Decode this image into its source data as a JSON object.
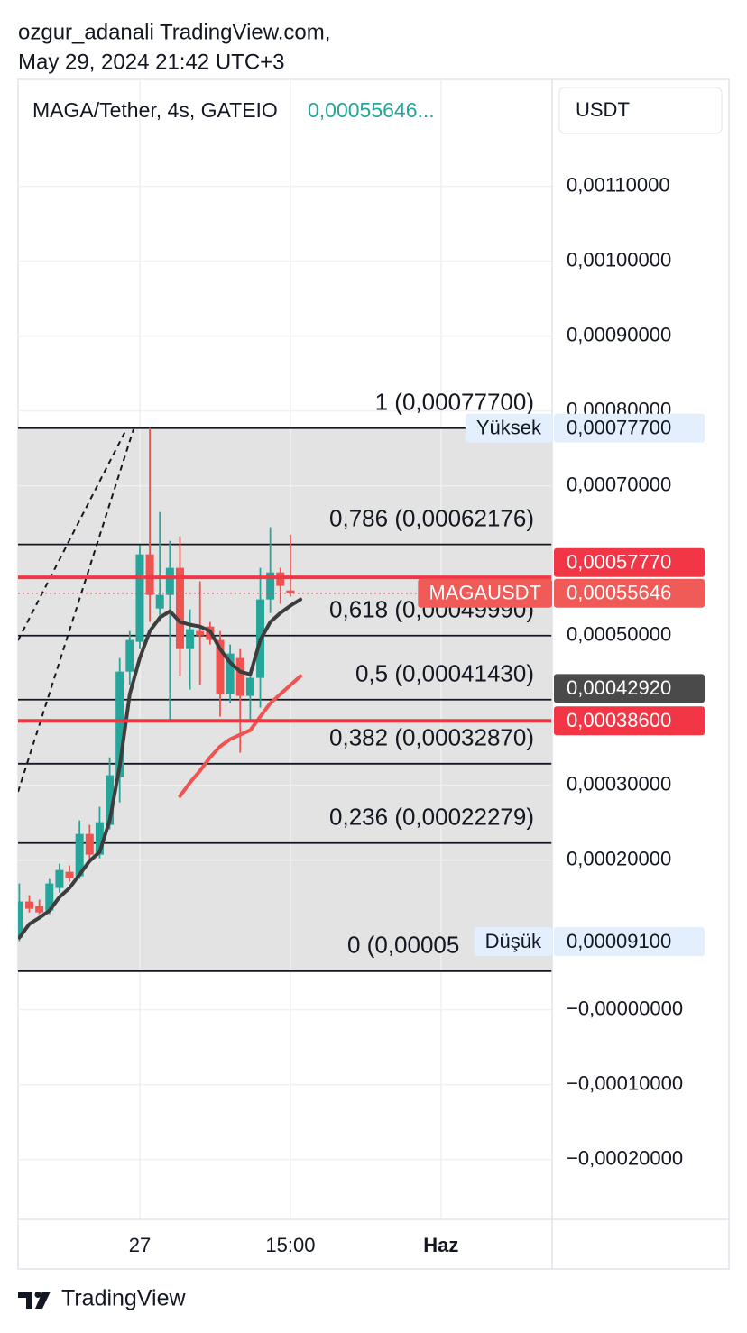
{
  "header": {
    "user": "ozgur_adanali TradingView.com,",
    "timestamp": "May 29, 2024 21:42 UTC+3"
  },
  "footer": {
    "brand": "TradingView"
  },
  "chart_data": {
    "type": "candlestick",
    "title": "MAGA/Tether, 4s, GATEIO",
    "last_price_label": "0,00055646...",
    "currency": "USDT",
    "categories": [
      null,
      null,
      null,
      null,
      null,
      null,
      null,
      null,
      null,
      null,
      null,
      null,
      "27",
      null,
      null,
      null,
      null,
      null,
      null,
      null,
      null,
      null,
      null,
      null,
      null,
      null,
      null,
      "15:00",
      null,
      null,
      null,
      null,
      null,
      null,
      null,
      null,
      null,
      null,
      null,
      null,
      null,
      null,
      "Haz"
    ],
    "open": [
      9.64e-05,
      0.0001446,
      0.0001386,
      0.0001325,
      0.0001627,
      0.0001843,
      0.0001783,
      0.0002349,
      0.0002072,
      0.000247,
      0.0003108,
      0.0004518,
      0.0004916,
      0.0006084,
      0.0005361,
      0.0005542,
      0.0005904,
      0.0004819,
      0.000506,
      0.000512,
      0.000494,
      0.0004217,
      0.0004699,
      0.0004193,
      0.0004434,
      0.0005482,
      0.0005843,
      0.0005602,
      null,
      null,
      null,
      null,
      null,
      null,
      null,
      null,
      null,
      null,
      null,
      null,
      null,
      null,
      null
    ],
    "high": [
      0.0001687,
      0.000153,
      0.000147,
      0.0001747,
      0.0001952,
      0.0001928,
      0.000253,
      0.000247,
      0.0002711,
      0.0003373,
      0.0004699,
      0.000506,
      0.0006205,
      0.000777,
      0.0006651,
      0.0006265,
      0.0006325,
      0.0005349,
      0.0005723,
      0.0005181,
      0.000506,
      0.000488,
      0.0004819,
      0.0004518,
      0.0005904,
      0.0006446,
      0.0005904,
      0.0006349,
      null,
      null,
      null,
      null,
      null,
      null,
      null,
      null,
      null,
      null,
      null,
      null,
      null,
      null,
      null
    ],
    "low": [
      9.16e-05,
      0.0001301,
      0.0001277,
      0.0001277,
      0.0001566,
      0.0001711,
      0.0001747,
      0.0001988,
      0.0002024,
      0.000241,
      0.0002771,
      0.0004337,
      0.0004819,
      0.0005181,
      0.0005181,
      0.0003855,
      0.0004458,
      0.0004277,
      0.0004337,
      0.000488,
      0.0003916,
      0.0004096,
      0.0003434,
      0.0003855,
      0.0004036,
      0.0005301,
      0.0005422,
      0.0005518,
      null,
      null,
      null,
      null,
      null,
      null,
      null,
      null,
      null,
      null,
      null,
      null,
      null,
      null,
      null
    ],
    "close": [
      0.0001446,
      0.0001349,
      0.0001301,
      0.0001687,
      0.0001867,
      0.0001759,
      0.0002349,
      0.0002072,
      0.0002506,
      0.0003133,
      0.0004518,
      0.000494,
      0.0006084,
      0.0005542,
      0.0005542,
      0.0005904,
      0.0004819,
      0.0005084,
      0.0005,
      0.000494,
      0.0004217,
      0.0004759,
      0.0004193,
      0.0004434,
      0.0005482,
      0.0005843,
      0.0005663,
      0.00055646,
      null,
      null,
      null,
      null,
      null,
      null,
      null,
      null,
      null,
      null,
      null,
      null,
      null,
      null,
      null
    ],
    "up_color": "#26a69a",
    "down_color": "#ef5350",
    "series": [
      {
        "color": "#3d3d3d",
        "values": [
          9.64e-05,
          0.0001145,
          0.0001229,
          0.0001325,
          0.0001506,
          0.0001627,
          0.0001807,
          0.0001988,
          0.0002108,
          0.000253,
          0.0003253,
          0.0004217,
          0.0004699,
          0.000506,
          0.0005241,
          0.0005325,
          0.0005181,
          0.0005145,
          0.000512,
          0.000506,
          0.0004819,
          0.0004639,
          0.0004518,
          0.0004482,
          0.000494,
          0.0005181,
          0.0005301,
          0.0005398,
          0.0005482,
          null,
          null,
          null,
          null,
          null,
          null,
          null,
          null,
          null,
          null,
          null,
          null,
          null,
          null
        ]
      },
      {
        "color": "#f05350",
        "values": [
          null,
          null,
          null,
          null,
          null,
          null,
          null,
          null,
          null,
          null,
          null,
          null,
          null,
          null,
          null,
          null,
          0.0002855,
          0.0003036,
          0.0003193,
          0.0003373,
          0.0003518,
          0.0003614,
          0.0003675,
          0.0003735,
          0.0003916,
          0.0004096,
          0.0004217,
          0.0004337,
          0.0004458,
          null,
          null,
          null,
          null,
          null,
          null,
          null,
          null,
          null,
          null,
          null,
          null,
          null,
          null
        ]
      }
    ],
    "ylim": [
      -0.00028,
      0.001243
    ],
    "yticks": [
      {
        "value": 0.0011,
        "label": "0,00110000"
      },
      {
        "value": 0.001,
        "label": "0,00100000"
      },
      {
        "value": 0.0009,
        "label": "0,00090000"
      },
      {
        "value": 0.0008,
        "label": "0,00080000"
      },
      {
        "value": 0.0007,
        "label": "0,00070000"
      },
      {
        "value": 0.0005,
        "label": "0,00050000"
      },
      {
        "value": 0.0003,
        "label": "0,00030000"
      },
      {
        "value": 0.0002,
        "label": "0,00020000"
      },
      {
        "value": 0,
        "label": "−0,00000000"
      },
      {
        "value": -0.0001,
        "label": "−0,00010000"
      },
      {
        "value": -0.0002,
        "label": "−0,00020000"
      }
    ],
    "grid": true,
    "fib_fill": "#e3e3e3",
    "fib_levels": [
      {
        "value": 0.000777,
        "label": "1 (0,00077700)"
      },
      {
        "value": 0.00062176,
        "label": "0,786 (0,00062176)"
      },
      {
        "value": 0.0004999,
        "label": "0,618 (0,00049990)"
      },
      {
        "value": 0.0004143,
        "label": "0,5 (0,00041430)"
      },
      {
        "value": 0.0003287,
        "label": "0,382 (0,00032870)"
      },
      {
        "value": 0.00022279,
        "label": "0,236 (0,00022279)"
      },
      {
        "value": 5.16e-05,
        "label": "0 (0,00005"
      }
    ],
    "hlines": [
      {
        "value": 0.0005777,
        "color": "#f23645",
        "style": "solid"
      },
      {
        "value": 0.00055646,
        "color": "#f23645",
        "style": "dotted"
      },
      {
        "value": 0.000386,
        "color": "#f23645",
        "style": "solid"
      }
    ],
    "price_tags": [
      {
        "tag": "Yüksek",
        "value": 0.000777,
        "label": "0,00077700",
        "color": "#e3effd",
        "text_color": "#131722"
      },
      {
        "value": 0.0005777,
        "label": "0,00057770",
        "color": "#f23645",
        "text_color": "#ffffff"
      },
      {
        "tag": "MAGAUSDT",
        "value": 0.00055646,
        "label": "0,00055646",
        "color": "#f05a57",
        "text_color": "#ffffff"
      },
      {
        "value": 0.0004292,
        "label": "0,00042920",
        "color": "#4a4a4a",
        "text_color": "#ffffff"
      },
      {
        "value": 0.000386,
        "label": "0,00038600",
        "color": "#f23645",
        "text_color": "#ffffff"
      },
      {
        "tag": "Düşük",
        "value": 9.1e-05,
        "label": "0,00009100",
        "color": "#e3effd",
        "text_color": "#131722"
      }
    ]
  }
}
